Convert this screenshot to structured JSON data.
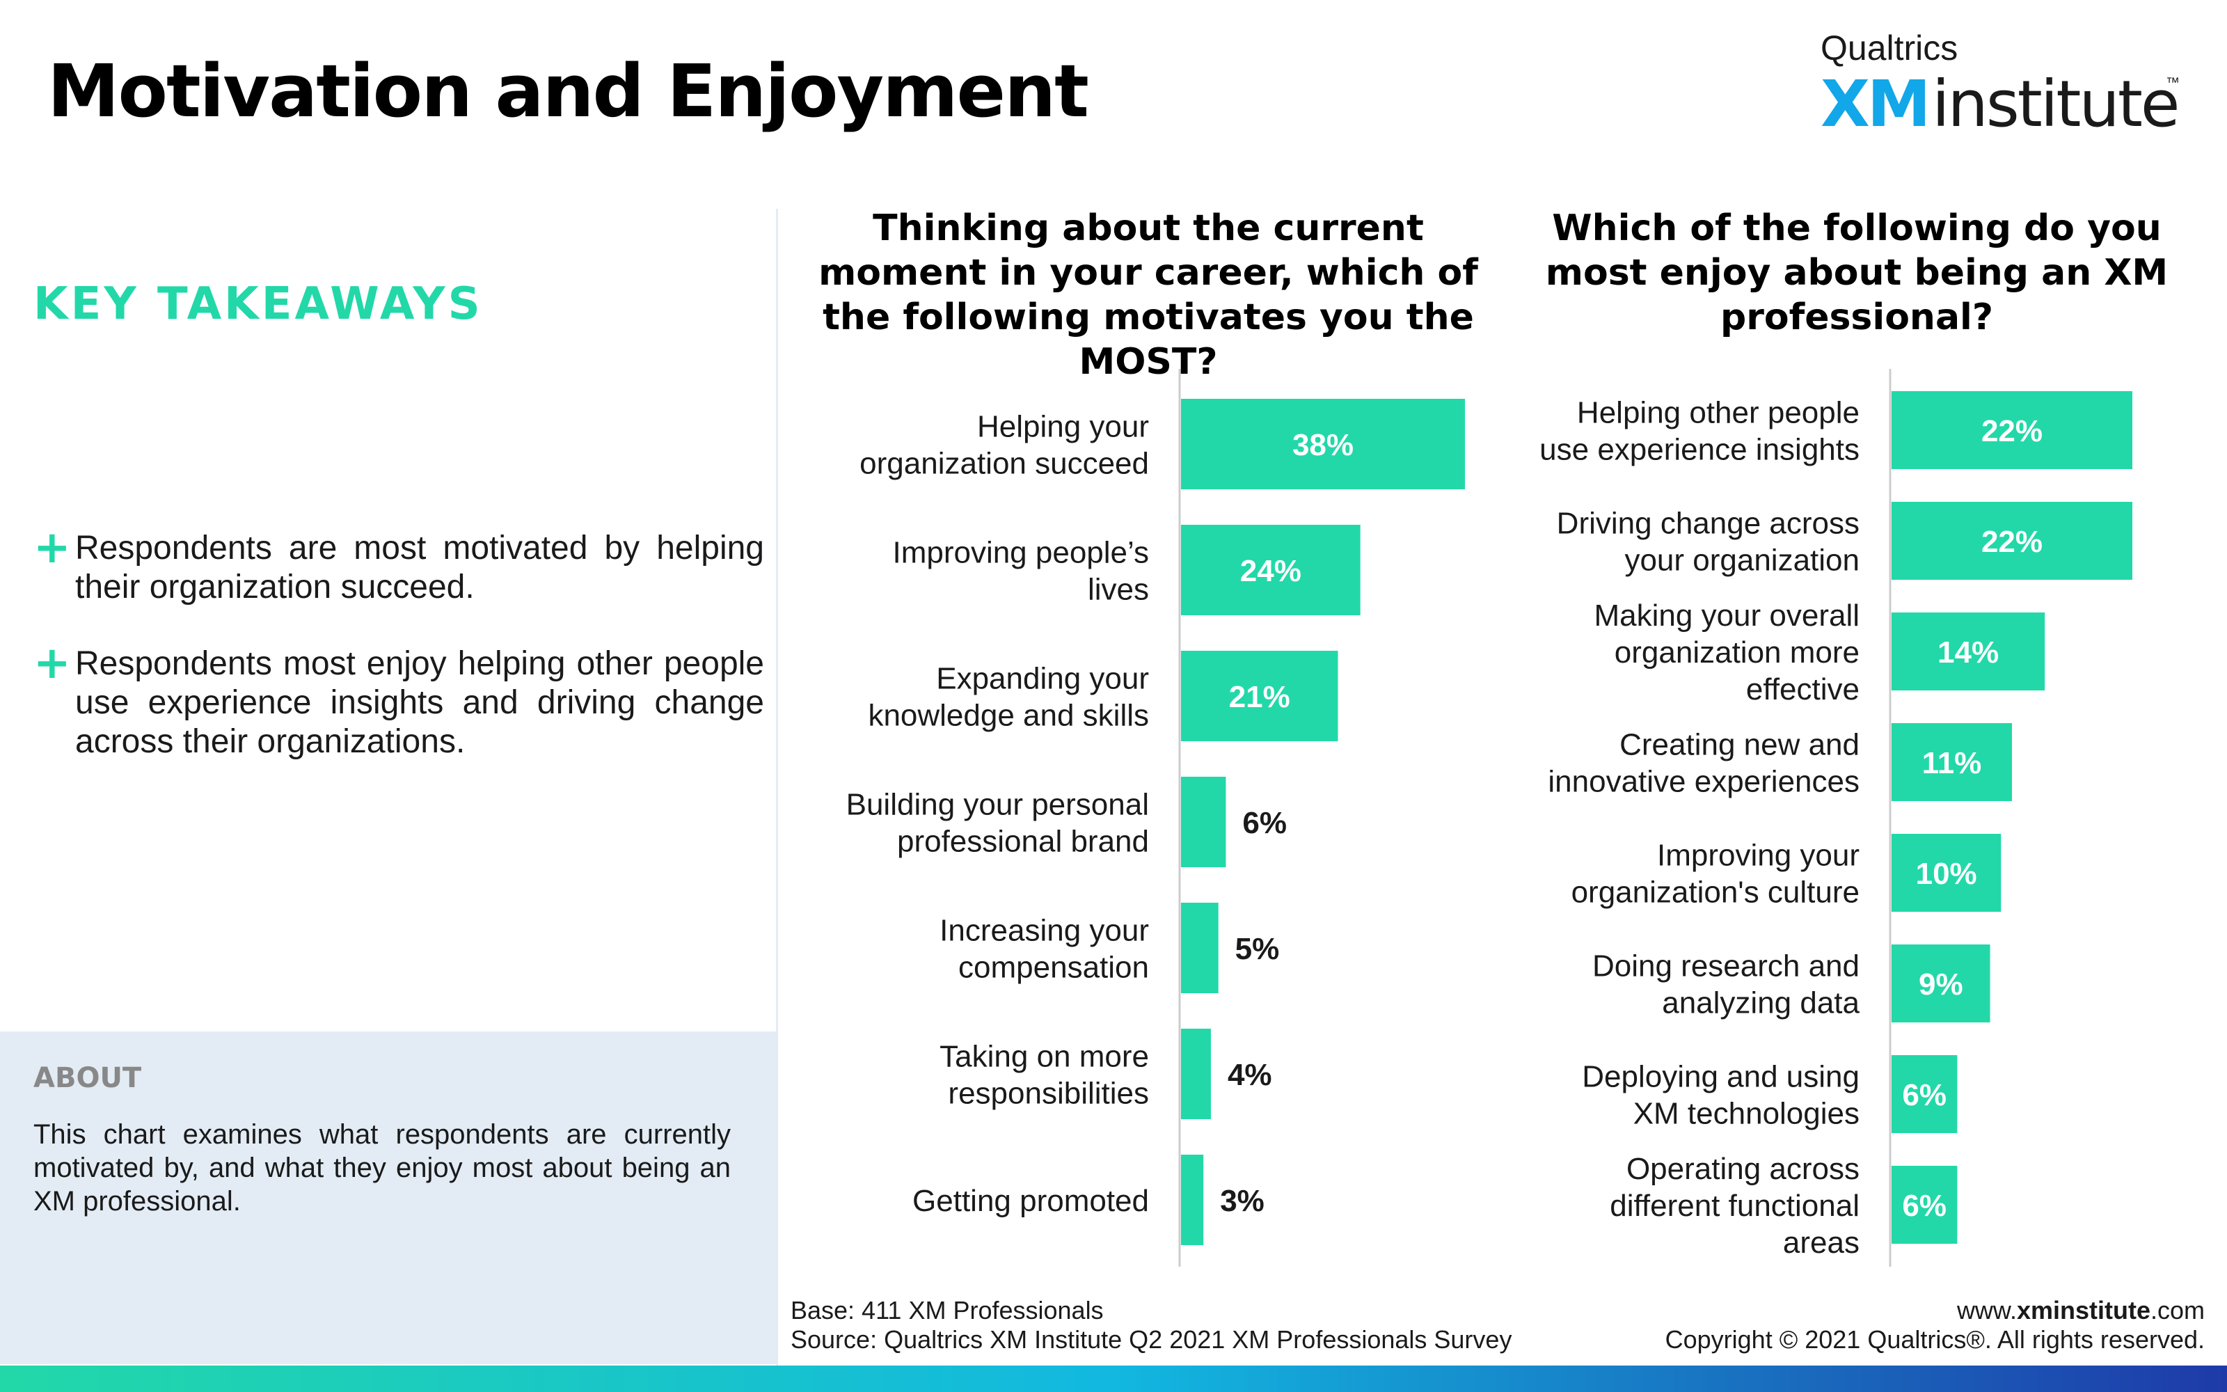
{
  "header": {
    "title": "Motivation and Enjoyment",
    "logo": {
      "top": "Qualtrics",
      "xm": "XM",
      "institute": "institute",
      "tm": "™"
    }
  },
  "sidebar": {
    "key_takeaways_heading": "KEY TAKEAWAYS",
    "takeaways": [
      "Respondents are most motivated by helping their organization succeed.",
      "Respondents most enjoy helping other people use experience insights and driving change across their organizations."
    ],
    "about_heading": "ABOUT",
    "about_text": "This chart examines what respondents are currently motivated by, and what they enjoy most about being an XM professional."
  },
  "footer": {
    "base": "Base: 411 XM Professionals",
    "source": "Source: Qualtrics XM Institute Q2 2021 XM Professionals Survey",
    "url_prefix": "www.",
    "url_bold": "xminstitute",
    "url_suffix": ".com",
    "copyright": "Copyright © 2021 Qualtrics®. All rights reserved."
  },
  "colors": {
    "accent": "#22d8a8",
    "bar": "#22d8a8",
    "blue": "#12a7e8",
    "about_bg": "#e3ecf5"
  },
  "chart_data": [
    {
      "type": "bar",
      "orientation": "horizontal",
      "title": "Thinking about the current moment in your career, which of the following motivates you the MOST?",
      "categories": [
        [
          "Helping your",
          "organization succeed"
        ],
        [
          "Improving people’s",
          "lives"
        ],
        [
          "Expanding your",
          "knowledge and skills"
        ],
        [
          "Building your personal",
          "professional brand"
        ],
        [
          "Increasing your",
          "compensation"
        ],
        [
          "Taking on more",
          "responsibilities"
        ],
        [
          "Getting promoted"
        ]
      ],
      "values": [
        38,
        24,
        21,
        6,
        5,
        4,
        3
      ],
      "value_labels": [
        "38%",
        "24%",
        "21%",
        "6%",
        "5%",
        "4%",
        "3%"
      ],
      "xlim": [
        0,
        38
      ]
    },
    {
      "type": "bar",
      "orientation": "horizontal",
      "title": "Which of the following do you most enjoy about being an XM professional?",
      "categories": [
        [
          "Helping other people",
          "use experience insights"
        ],
        [
          "Driving change across",
          "your organization"
        ],
        [
          "Making your overall",
          "organization more",
          "effective"
        ],
        [
          "Creating new and",
          "innovative experiences"
        ],
        [
          "Improving your",
          "organization's culture"
        ],
        [
          "Doing research and",
          "analyzing data"
        ],
        [
          "Deploying and using",
          "XM technologies"
        ],
        [
          "Operating across",
          "different functional",
          "areas"
        ]
      ],
      "values": [
        22,
        22,
        14,
        11,
        10,
        9,
        6,
        6
      ],
      "value_labels": [
        "22%",
        "22%",
        "14%",
        "11%",
        "10%",
        "9%",
        "6%",
        "6%"
      ],
      "xlim": [
        0,
        22
      ]
    }
  ]
}
